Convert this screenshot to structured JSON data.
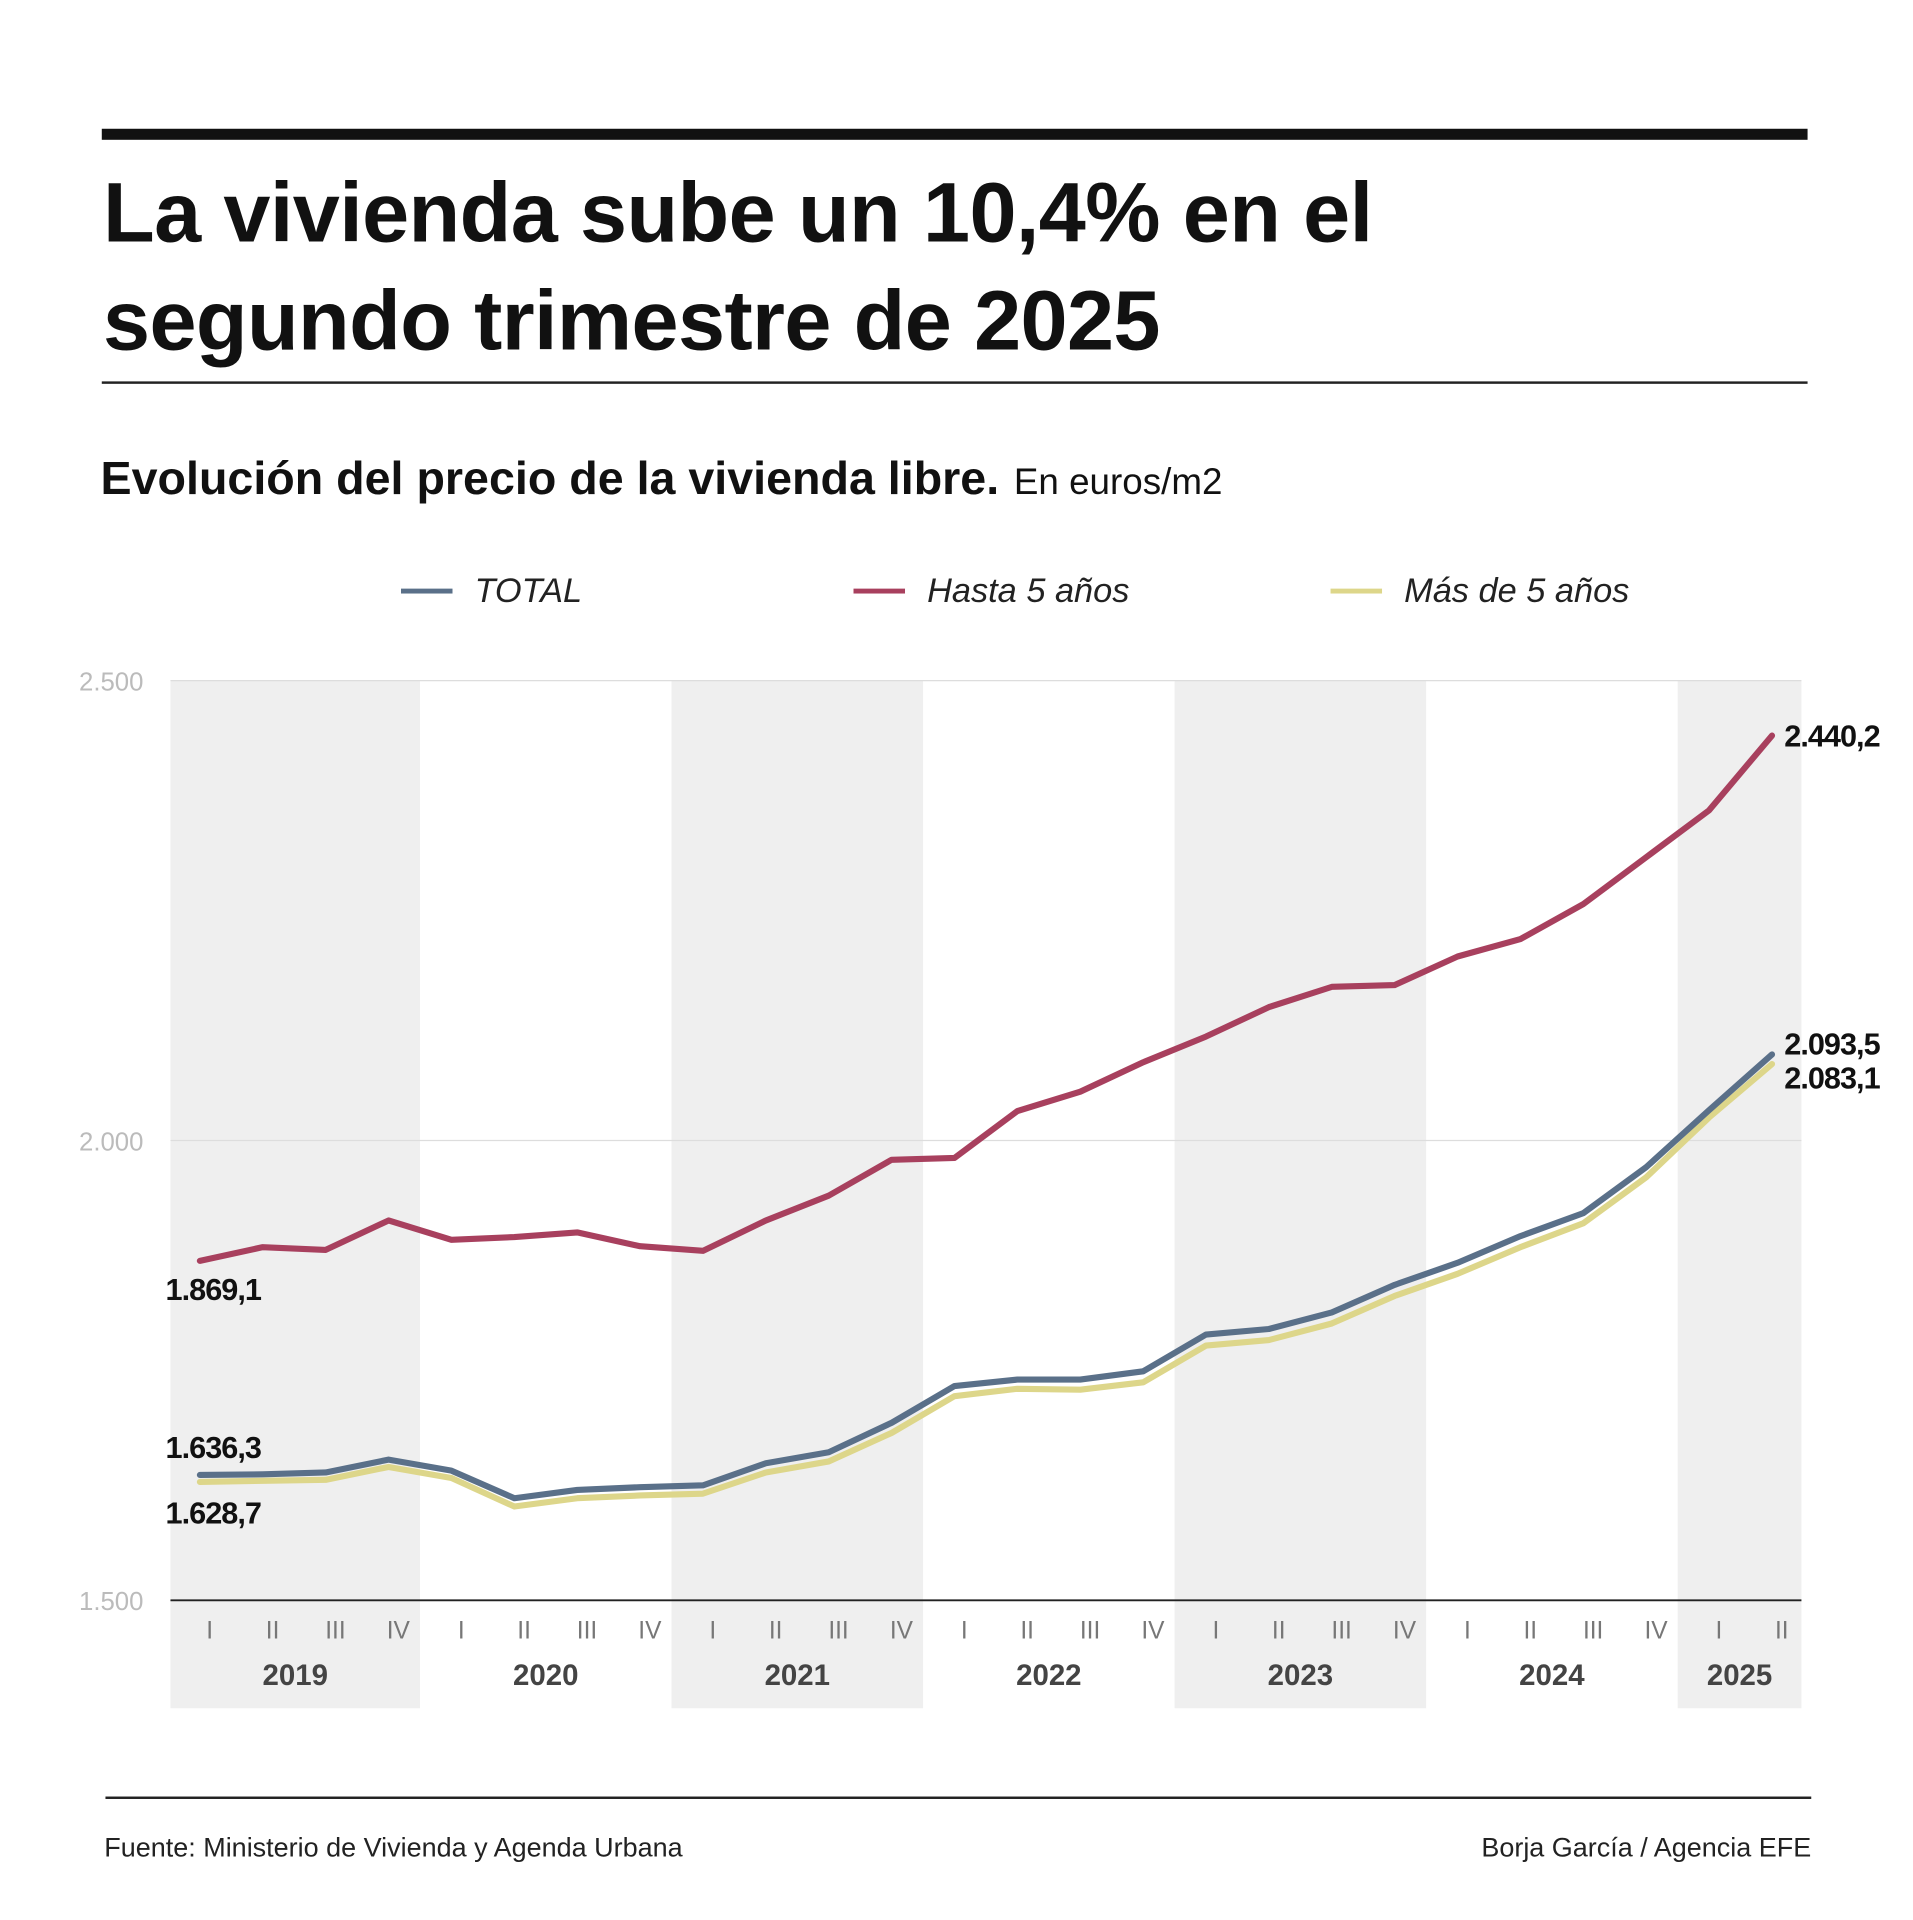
{
  "header": {
    "title_line1": "La vivienda sube un 10,4% en el",
    "title_line2": "segundo trimestre de 2025",
    "subtitle": "Evolución del precio de la vivienda libre.",
    "unit": "En euros/m2"
  },
  "footer": {
    "source": "Fuente: Ministerio de Vivienda y Agenda Urbana",
    "credit": "Borja García / Agencia EFE"
  },
  "chart_data": {
    "type": "line",
    "title": "Evolución del precio de la vivienda libre.",
    "ylabel": "En euros/m2",
    "ylim": [
      1500,
      2500
    ],
    "yticks": [
      1500,
      2000,
      2500
    ],
    "ytick_labels": [
      "1.500",
      "2.000",
      "2.500"
    ],
    "grid": true,
    "legend_position": "top",
    "years": [
      "2019",
      "2020",
      "2021",
      "2022",
      "2023",
      "2024",
      "2025"
    ],
    "quarters": [
      "I",
      "II",
      "III",
      "IV",
      "I",
      "II",
      "III",
      "IV",
      "I",
      "II",
      "III",
      "IV",
      "I",
      "II",
      "III",
      "IV",
      "I",
      "II",
      "III",
      "IV",
      "I",
      "II",
      "III",
      "IV",
      "I",
      "II"
    ],
    "colors": {
      "band": "#efefef",
      "axis": "#222222",
      "grid": "#dddddd",
      "tick": "#bbbbbb"
    },
    "series": [
      {
        "name": "TOTAL",
        "color": "#5a7089",
        "values": [
          1636.3,
          1637,
          1639,
          1653,
          1641,
          1611,
          1620,
          1623,
          1625,
          1649,
          1661,
          1693,
          1733,
          1740,
          1740,
          1749,
          1789,
          1795,
          1813,
          1843,
          1867,
          1896,
          1921,
          1971,
          2033,
          2093.5
        ],
        "start_label": "1.636,3",
        "end_label": "2.093,5"
      },
      {
        "name": "Hasta 5 años",
        "color": "#a8405e",
        "values": [
          1869.1,
          1884,
          1881,
          1913,
          1892,
          1895,
          1900,
          1885,
          1880,
          1913,
          1940,
          1979,
          1981,
          2032,
          2053,
          2085,
          2113,
          2145,
          2167,
          2169,
          2200,
          2219,
          2257,
          2308,
          2359,
          2440.2
        ],
        "start_label": "1.869,1",
        "end_label": "2.440,2"
      },
      {
        "name": "Más de 5 años",
        "color": "#ddd68a",
        "values": [
          1628.7,
          1630,
          1631,
          1645,
          1633,
          1602,
          1611,
          1614,
          1616,
          1639,
          1651,
          1682,
          1722,
          1730,
          1729,
          1737,
          1777,
          1783,
          1801,
          1831,
          1855,
          1884,
          1910,
          1960,
          2025,
          2083.1
        ],
        "start_label": "1.628,7",
        "end_label": "2.083,1"
      }
    ]
  }
}
